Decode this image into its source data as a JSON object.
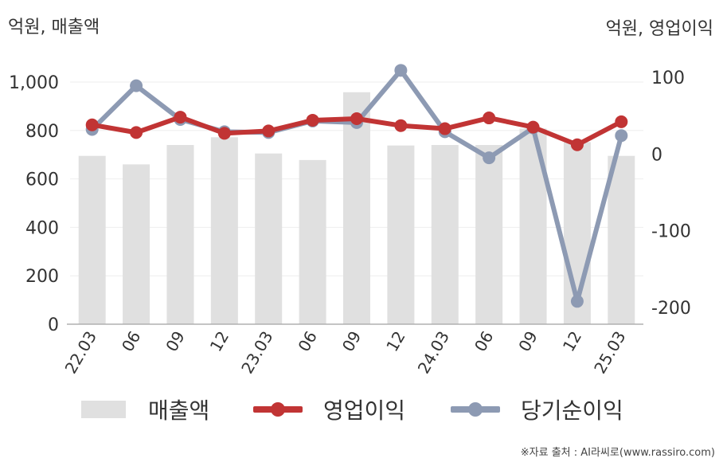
{
  "units": {
    "left": "억원, 매출액",
    "right": "억원, 영업이익"
  },
  "source": "※자료 출처 : AI라씨로(www.rassiro.com)",
  "chart_data": {
    "type": "bar+line",
    "categories": [
      "22.03",
      "06",
      "09",
      "12",
      "23.03",
      "06",
      "09",
      "12",
      "24.03",
      "06",
      "09",
      "12",
      "25.03"
    ],
    "left_axis": {
      "min": 0,
      "max": 1000,
      "ticks": [
        "0",
        "200",
        "400",
        "600",
        "800",
        "1,000"
      ]
    },
    "right_axis": {
      "min": -200,
      "max": 100,
      "ticks": [
        "-200",
        "-100",
        "0",
        "100"
      ]
    },
    "bar_series": {
      "name": "매출액",
      "axis": "left",
      "color": "#e0e0e0",
      "values": [
        695,
        660,
        740,
        772,
        705,
        678,
        958,
        738,
        740,
        740,
        808,
        752,
        695
      ]
    },
    "line_series": [
      {
        "name": "영업이익",
        "axis": "right",
        "color": "#c13434",
        "values": [
          38,
          28,
          48,
          27,
          30,
          44,
          46,
          37,
          33,
          47,
          35,
          12,
          42
        ]
      },
      {
        "name": "당기순이익",
        "axis": "right",
        "color": "#8d9ab3",
        "values": [
          32,
          89,
          45,
          29,
          28,
          43,
          41,
          109,
          29,
          -5,
          34,
          -192,
          24
        ]
      }
    ],
    "grid": true,
    "legend_position": "bottom"
  }
}
